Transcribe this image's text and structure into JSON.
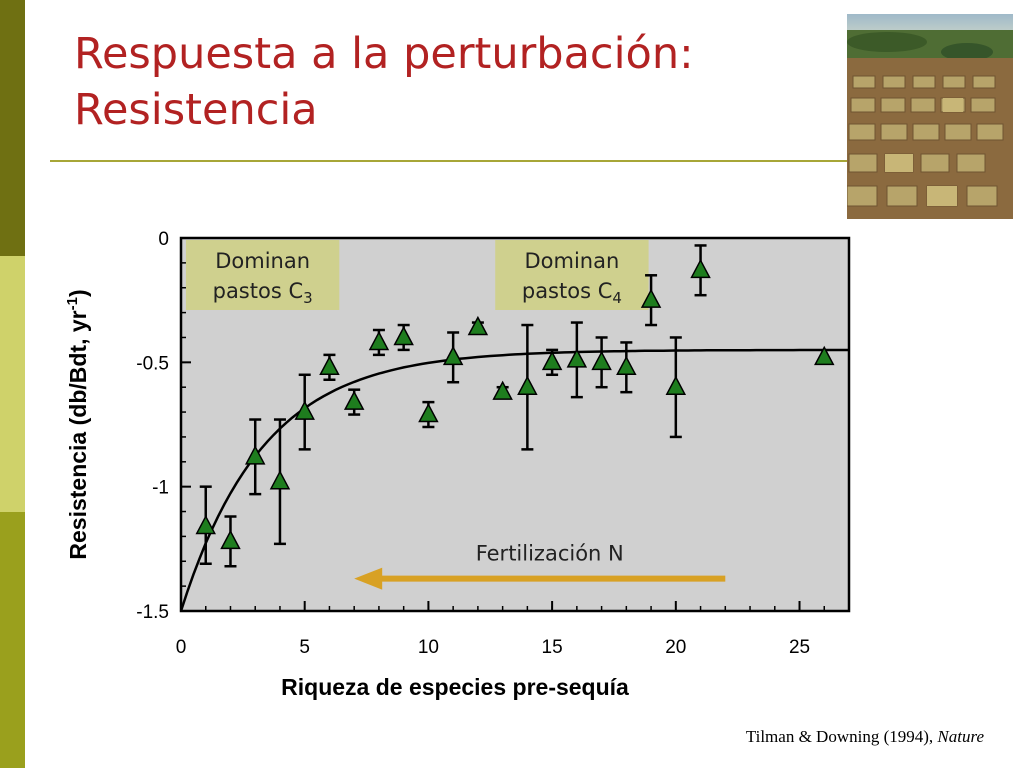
{
  "slide": {
    "title_line1": "Respuesta a la perturbación:",
    "title_line2": "Resistencia",
    "citation_authors": "Tilman & Downing (1994), ",
    "citation_journal": "Nature"
  },
  "colors": {
    "title": "#b22222",
    "plot_background": "#d0d0d0",
    "marker_fill": "#1e7d1e",
    "annotation_box": "#cfd08e",
    "arrow": "#d8a124"
  },
  "chart_data": {
    "type": "scatter",
    "xlabel": "Riqueza de especies pre-sequía",
    "ylabel_main": "Resistencia (db/Bdt, yr",
    "ylabel_sup": "-1",
    "ylabel_close": ")",
    "xlim": [
      0,
      27
    ],
    "ylim": [
      -1.5,
      0
    ],
    "x_ticks": [
      0,
      5,
      10,
      15,
      20,
      25
    ],
    "y_ticks": [
      0,
      -0.5,
      -1,
      -1.5
    ],
    "y_tick_labels": [
      "0",
      "-0.5",
      "-1",
      "-1.5"
    ],
    "grid": false,
    "points": [
      {
        "x": 1,
        "y": -1.16,
        "lo": -1.31,
        "hi": -1.0
      },
      {
        "x": 2,
        "y": -1.22,
        "lo": -1.32,
        "hi": -1.12
      },
      {
        "x": 3,
        "y": -0.88,
        "lo": -1.03,
        "hi": -0.73
      },
      {
        "x": 4,
        "y": -0.98,
        "lo": -1.23,
        "hi": -0.73
      },
      {
        "x": 5,
        "y": -0.7,
        "lo": -0.85,
        "hi": -0.55
      },
      {
        "x": 6,
        "y": -0.52,
        "lo": -0.57,
        "hi": -0.47
      },
      {
        "x": 7,
        "y": -0.66,
        "lo": -0.71,
        "hi": -0.61
      },
      {
        "x": 8,
        "y": -0.42,
        "lo": -0.47,
        "hi": -0.37
      },
      {
        "x": 9,
        "y": -0.4,
        "lo": -0.45,
        "hi": -0.35
      },
      {
        "x": 10,
        "y": -0.71,
        "lo": -0.76,
        "hi": -0.66
      },
      {
        "x": 11,
        "y": -0.48,
        "lo": -0.58,
        "hi": -0.38
      },
      {
        "x": 12,
        "y": -0.36,
        "lo": -0.38,
        "hi": -0.34
      },
      {
        "x": 13,
        "y": -0.62,
        "lo": -0.64,
        "hi": -0.6
      },
      {
        "x": 14,
        "y": -0.6,
        "lo": -0.85,
        "hi": -0.35
      },
      {
        "x": 15,
        "y": -0.5,
        "lo": -0.55,
        "hi": -0.45
      },
      {
        "x": 16,
        "y": -0.49,
        "lo": -0.64,
        "hi": -0.34
      },
      {
        "x": 17,
        "y": -0.5,
        "lo": -0.6,
        "hi": -0.4
      },
      {
        "x": 18,
        "y": -0.52,
        "lo": -0.62,
        "hi": -0.42
      },
      {
        "x": 19,
        "y": -0.25,
        "lo": -0.35,
        "hi": -0.15
      },
      {
        "x": 20,
        "y": -0.6,
        "lo": -0.8,
        "hi": -0.4
      },
      {
        "x": 21,
        "y": -0.13,
        "lo": -0.23,
        "hi": -0.03
      },
      {
        "x": 26,
        "y": -0.48,
        "lo": null,
        "hi": null
      }
    ],
    "fit_curve": {
      "type": "saturating",
      "asymptote": -0.45,
      "start": -1.5,
      "rate": 0.3
    },
    "annotations": {
      "c3_box_line1": "Dominan",
      "c3_box_line2": "pastos C",
      "c3_subscript": "3",
      "c4_box_line1": "Dominan",
      "c4_box_line2": "pastos C",
      "c4_subscript": "4",
      "arrow_label": "Fertilización N",
      "arrow_from_x": 22,
      "arrow_to_x": 7,
      "arrow_y": -1.37
    }
  }
}
